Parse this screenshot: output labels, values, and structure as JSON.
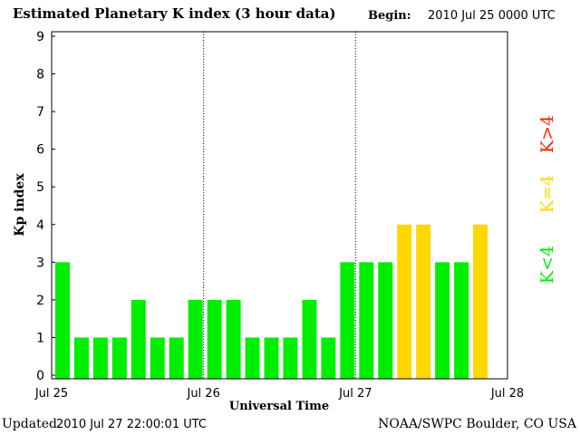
{
  "header": {
    "title": "Estimated Planetary K index (3 hour data)",
    "begin_label": "Begin:",
    "begin_value": "2010 Jul 25 0000 UTC"
  },
  "footer": {
    "updated_label": "Updated",
    "updated_value": "2010 Jul 27 22:00:01 UTC",
    "credit": "NOAA/SWPC Boulder, CO USA"
  },
  "colors": {
    "low": "#00ee00",
    "storm_threshold": "#ffd700",
    "storm": "#ff2200"
  },
  "legend": {
    "low": "K<4",
    "equal": "K=4",
    "high": "K>4"
  },
  "chart_data": {
    "type": "bar",
    "title": "Estimated Planetary K index (3 hour data)",
    "xlabel": "Universal Time",
    "ylabel": "Kp index",
    "ylim": [
      0,
      9
    ],
    "yticks": [
      0,
      1,
      2,
      3,
      4,
      5,
      6,
      7,
      8,
      9
    ],
    "xticks": [
      "Jul 25",
      "Jul 26",
      "Jul 27",
      "Jul 28"
    ],
    "bins_per_day": 8,
    "total_bins": 24,
    "grid": false,
    "values": [
      3,
      1,
      1,
      1,
      2,
      1,
      1,
      2,
      2,
      2,
      1,
      1,
      1,
      2,
      1,
      3,
      3,
      3,
      4,
      4,
      3,
      3,
      4
    ]
  }
}
